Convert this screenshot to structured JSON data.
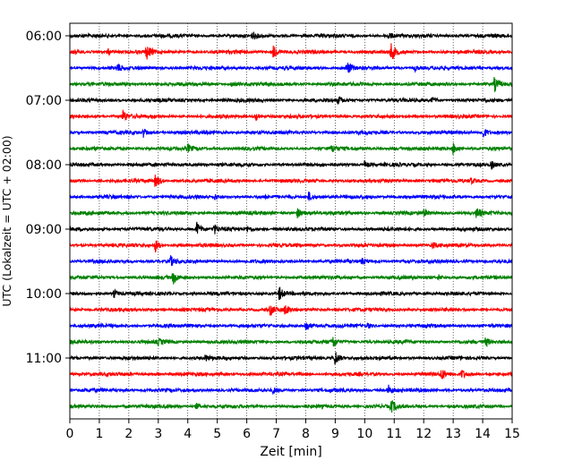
{
  "chart_data": {
    "type": "line",
    "xlabel": "Zeit  [min]",
    "ylabel": "UTC (Lokalzeit = UTC + 02:00)",
    "xlim": [
      0,
      15
    ],
    "x_ticks": [
      "0",
      "1",
      "2",
      "3",
      "4",
      "5",
      "6",
      "7",
      "8",
      "9",
      "10",
      "11",
      "12",
      "13",
      "14",
      "15"
    ],
    "y_tick_labels": [
      {
        "row": 0,
        "label": "06:00"
      },
      {
        "row": 4,
        "label": "07:00"
      },
      {
        "row": 8,
        "label": "08:00"
      },
      {
        "row": 12,
        "label": "09:00"
      },
      {
        "row": 16,
        "label": "10:00"
      },
      {
        "row": 20,
        "label": "11:00"
      }
    ],
    "grid": "vertical dotted lines at each minute",
    "trace_colors": [
      "#000000",
      "#ff0000",
      "#0000ff",
      "#008000"
    ],
    "traces": [
      {
        "start": "06:00",
        "color": "#000000",
        "events": [
          {
            "t": 6.2,
            "a": 3.5
          },
          {
            "t": 10.8,
            "a": 4
          }
        ]
      },
      {
        "start": "06:15",
        "color": "#ff0000",
        "events": [
          {
            "t": 2.6,
            "a": 8
          },
          {
            "t": 6.9,
            "a": 7
          },
          {
            "t": 10.9,
            "a": 10
          },
          {
            "t": 1.3,
            "a": 3
          }
        ]
      },
      {
        "start": "06:30",
        "color": "#0000ff",
        "events": [
          {
            "t": 1.6,
            "a": 5
          },
          {
            "t": 9.4,
            "a": 8
          },
          {
            "t": 11.7,
            "a": 3
          }
        ]
      },
      {
        "start": "06:45",
        "color": "#008000",
        "events": [
          {
            "t": 14.4,
            "a": 8
          },
          {
            "t": 5.5,
            "a": 3
          }
        ]
      },
      {
        "start": "07:00",
        "color": "#000000",
        "events": [
          {
            "t": 9.1,
            "a": 4
          },
          {
            "t": 12.3,
            "a": 3
          }
        ]
      },
      {
        "start": "07:15",
        "color": "#ff0000",
        "events": [
          {
            "t": 1.8,
            "a": 7
          },
          {
            "t": 6.3,
            "a": 5
          }
        ]
      },
      {
        "start": "07:30",
        "color": "#0000ff",
        "events": [
          {
            "t": 2.5,
            "a": 5
          },
          {
            "t": 14.0,
            "a": 7
          }
        ]
      },
      {
        "start": "07:45",
        "color": "#008000",
        "events": [
          {
            "t": 13.0,
            "a": 7
          },
          {
            "t": 4.0,
            "a": 4
          },
          {
            "t": 8.9,
            "a": 4
          }
        ]
      },
      {
        "start": "08:00",
        "color": "#000000",
        "events": [
          {
            "t": 10.0,
            "a": 4
          },
          {
            "t": 14.3,
            "a": 4
          }
        ]
      },
      {
        "start": "08:15",
        "color": "#ff0000",
        "events": [
          {
            "t": 2.9,
            "a": 8
          },
          {
            "t": 13.6,
            "a": 3
          }
        ]
      },
      {
        "start": "08:30",
        "color": "#0000ff",
        "events": [
          {
            "t": 8.1,
            "a": 5
          },
          {
            "t": 4.9,
            "a": 3
          }
        ]
      },
      {
        "start": "08:45",
        "color": "#008000",
        "events": [
          {
            "t": 7.7,
            "a": 6
          },
          {
            "t": 13.8,
            "a": 7
          },
          {
            "t": 12.0,
            "a": 3
          }
        ]
      },
      {
        "start": "09:00",
        "color": "#000000",
        "events": [
          {
            "t": 4.3,
            "a": 8
          },
          {
            "t": 4.9,
            "a": 5
          },
          {
            "t": 6.0,
            "a": 3
          }
        ]
      },
      {
        "start": "09:15",
        "color": "#ff0000",
        "events": [
          {
            "t": 2.9,
            "a": 7
          },
          {
            "t": 12.3,
            "a": 3
          }
        ]
      },
      {
        "start": "09:30",
        "color": "#0000ff",
        "events": [
          {
            "t": 3.4,
            "a": 6
          },
          {
            "t": 9.9,
            "a": 3
          }
        ]
      },
      {
        "start": "09:45",
        "color": "#008000",
        "events": [
          {
            "t": 3.5,
            "a": 7
          },
          {
            "t": 12.5,
            "a": 3
          }
        ]
      },
      {
        "start": "10:00",
        "color": "#000000",
        "events": [
          {
            "t": 7.1,
            "a": 8
          },
          {
            "t": 1.5,
            "a": 4
          }
        ]
      },
      {
        "start": "10:15",
        "color": "#ff0000",
        "events": [
          {
            "t": 6.8,
            "a": 6
          },
          {
            "t": 7.3,
            "a": 5
          }
        ]
      },
      {
        "start": "10:30",
        "color": "#0000ff",
        "events": [
          {
            "t": 8.0,
            "a": 7
          },
          {
            "t": 10.1,
            "a": 3
          }
        ]
      },
      {
        "start": "10:45",
        "color": "#008000",
        "events": [
          {
            "t": 8.9,
            "a": 8
          },
          {
            "t": 3.0,
            "a": 3
          },
          {
            "t": 14.1,
            "a": 4
          }
        ]
      },
      {
        "start": "11:00",
        "color": "#000000",
        "events": [
          {
            "t": 9.0,
            "a": 9
          },
          {
            "t": 4.6,
            "a": 3
          }
        ]
      },
      {
        "start": "11:15",
        "color": "#ff0000",
        "events": [
          {
            "t": 12.6,
            "a": 6
          },
          {
            "t": 13.3,
            "a": 5
          }
        ]
      },
      {
        "start": "11:30",
        "color": "#0000ff",
        "events": [
          {
            "t": 10.8,
            "a": 6
          },
          {
            "t": 6.9,
            "a": 3
          }
        ]
      },
      {
        "start": "11:45",
        "color": "#008000",
        "events": [
          {
            "t": 10.9,
            "a": 7
          },
          {
            "t": 4.3,
            "a": 3
          }
        ]
      }
    ]
  }
}
